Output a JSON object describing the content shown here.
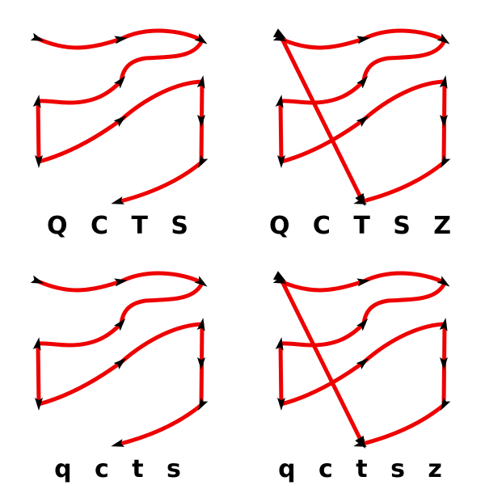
{
  "colors": {
    "path": "#ee0000",
    "marker": "#000000"
  },
  "panels": [
    {
      "label": "Q C T S",
      "has_z_stroke": false
    },
    {
      "label": "Q C T S Z",
      "has_z_stroke": true
    },
    {
      "label": "q c t s",
      "has_z_stroke": false
    },
    {
      "label": "q c t s z",
      "has_z_stroke": true
    }
  ]
}
